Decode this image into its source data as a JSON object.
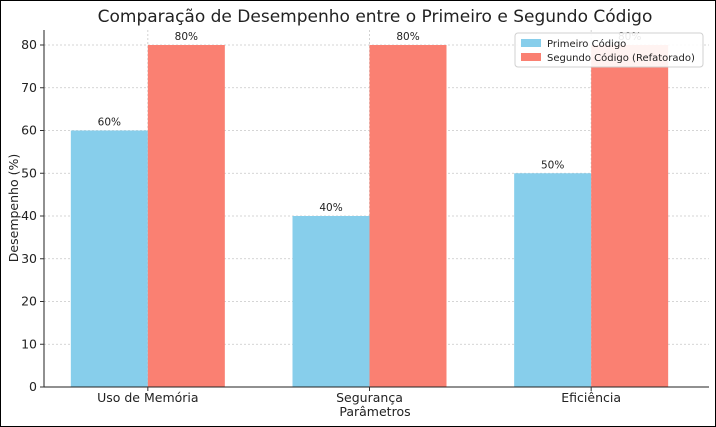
{
  "chart_data": {
    "type": "bar",
    "title": "Comparação de Desempenho entre o Primeiro e Segundo Código",
    "xlabel": "Parâmetros",
    "ylabel": "Desempenho (%)",
    "categories": [
      "Uso de Memória",
      "Segurança",
      "Eficiência"
    ],
    "series": [
      {
        "name": "Primeiro Código",
        "values": [
          60,
          40,
          50
        ],
        "labels": [
          "60%",
          "40%",
          "50%"
        ],
        "color": "#87ceeb"
      },
      {
        "name": "Segundo Código (Refatorado)",
        "values": [
          80,
          80,
          80
        ],
        "labels": [
          "80%",
          "80%",
          "80%"
        ],
        "color": "#fa8072"
      }
    ],
    "ylim": [
      0,
      80
    ],
    "yticks": [
      "0",
      "10",
      "20",
      "30",
      "40",
      "50",
      "60",
      "70",
      "80"
    ],
    "grid": true,
    "legend_position": "top-right"
  }
}
